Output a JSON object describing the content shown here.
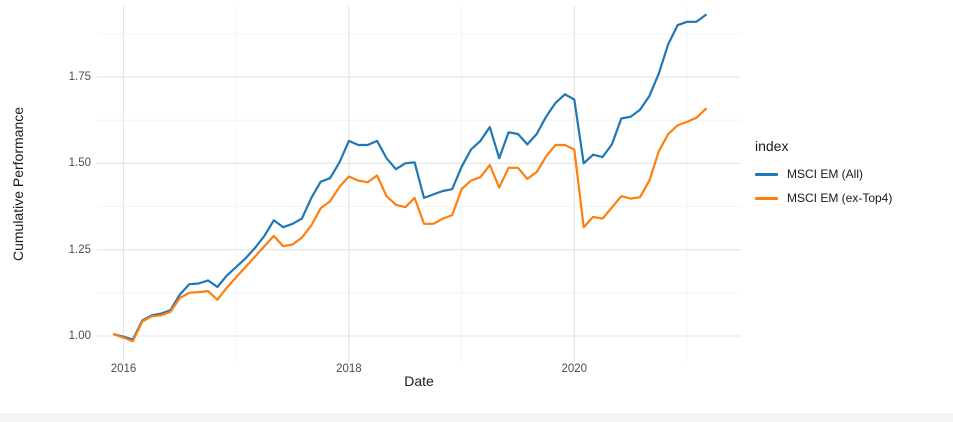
{
  "figure": {
    "background": "#ffffff",
    "bottom_strip_color": "#f4f4f5",
    "grid_major_color": "#e4e4e4",
    "grid_minor_color": "#f2f2f2",
    "tick_text_color": "#4d4d4d",
    "title_text_color": "#1a1a1a"
  },
  "legend": {
    "title": "index"
  },
  "chart_data": {
    "type": "line",
    "title": "",
    "xlabel": "Date",
    "ylabel": "Cumulative Performance",
    "grid": true,
    "legend_title": "index",
    "legend_position": "right",
    "frequency": "monthly",
    "x_tick_labels": [
      "2016",
      "2018",
      "2020"
    ],
    "x_tick_years": [
      2016,
      2018,
      2020
    ],
    "x_minor_years": [
      2017,
      2019,
      2021
    ],
    "y_tick_labels": [
      "1.00",
      "1.25",
      "1.50",
      "1.75"
    ],
    "y_ticks": [
      1.0,
      1.25,
      1.5,
      1.75
    ],
    "y_minor_ticks": [
      1.125,
      1.375,
      1.625,
      1.875
    ],
    "xlim_years": [
      2015.765,
      2021.48
    ],
    "ylim": [
      0.928,
      1.956
    ],
    "dates": [
      "2015-12",
      "2016-01",
      "2016-02",
      "2016-03",
      "2016-04",
      "2016-05",
      "2016-06",
      "2016-07",
      "2016-08",
      "2016-09",
      "2016-10",
      "2016-11",
      "2016-12",
      "2017-01",
      "2017-02",
      "2017-03",
      "2017-04",
      "2017-05",
      "2017-06",
      "2017-07",
      "2017-08",
      "2017-09",
      "2017-10",
      "2017-11",
      "2017-12",
      "2018-01",
      "2018-02",
      "2018-03",
      "2018-04",
      "2018-05",
      "2018-06",
      "2018-07",
      "2018-08",
      "2018-09",
      "2018-10",
      "2018-11",
      "2018-12",
      "2019-01",
      "2019-02",
      "2019-03",
      "2019-04",
      "2019-05",
      "2019-06",
      "2019-07",
      "2019-08",
      "2019-09",
      "2019-10",
      "2019-11",
      "2019-12",
      "2020-01",
      "2020-02",
      "2020-03",
      "2020-04",
      "2020-05",
      "2020-06",
      "2020-07",
      "2020-08",
      "2020-09",
      "2020-10",
      "2020-11",
      "2020-12",
      "2021-01",
      "2021-02",
      "2021-03"
    ],
    "series": [
      {
        "name": "MSCI EM (All)",
        "color": "#1f77b4",
        "values": [
          1.005,
          0.998,
          0.99,
          1.045,
          1.06,
          1.065,
          1.075,
          1.12,
          1.15,
          1.152,
          1.161,
          1.142,
          1.175,
          1.2,
          1.225,
          1.255,
          1.29,
          1.335,
          1.315,
          1.325,
          1.34,
          1.4,
          1.447,
          1.457,
          1.503,
          1.565,
          1.553,
          1.553,
          1.565,
          1.515,
          1.483,
          1.5,
          1.503,
          1.4,
          1.41,
          1.42,
          1.425,
          1.49,
          1.54,
          1.565,
          1.605,
          1.515,
          1.59,
          1.585,
          1.555,
          1.585,
          1.635,
          1.675,
          1.7,
          1.685,
          1.5,
          1.525,
          1.518,
          1.555,
          1.63,
          1.635,
          1.655,
          1.695,
          1.76,
          1.845,
          1.9,
          1.91,
          1.91,
          1.93
        ]
      },
      {
        "name": "MSCI EM (ex-Top4)",
        "color": "#ff7f0e",
        "values": [
          1.005,
          0.995,
          0.985,
          1.042,
          1.057,
          1.06,
          1.07,
          1.11,
          1.125,
          1.127,
          1.13,
          1.105,
          1.14,
          1.17,
          1.2,
          1.23,
          1.26,
          1.29,
          1.26,
          1.265,
          1.285,
          1.32,
          1.37,
          1.39,
          1.432,
          1.462,
          1.45,
          1.445,
          1.465,
          1.405,
          1.38,
          1.373,
          1.4,
          1.325,
          1.325,
          1.34,
          1.35,
          1.425,
          1.45,
          1.46,
          1.495,
          1.43,
          1.487,
          1.487,
          1.455,
          1.475,
          1.52,
          1.553,
          1.553,
          1.54,
          1.315,
          1.345,
          1.34,
          1.372,
          1.405,
          1.398,
          1.402,
          1.45,
          1.535,
          1.585,
          1.61,
          1.62,
          1.632,
          1.658
        ]
      }
    ]
  }
}
